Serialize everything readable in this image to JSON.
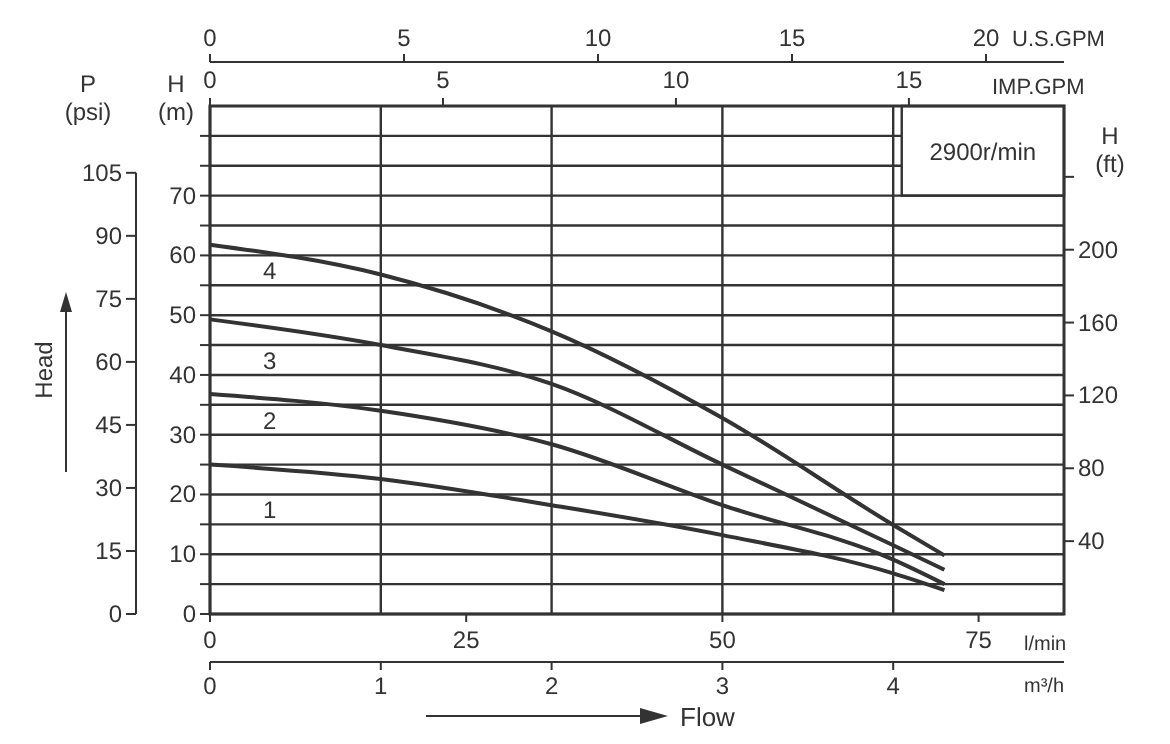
{
  "chart_data": {
    "type": "line",
    "xlabel": "m³/h",
    "ylabel": "H (m)",
    "y2label": "H (ft)",
    "y3label": "P (psi)",
    "x2label": "U.S.GPM",
    "xlim": [
      0,
      5
    ],
    "xticks": [
      0,
      1,
      2,
      3,
      4
    ],
    "x2lim": [
      0,
      22.01
    ],
    "x2ticks": [
      0,
      5,
      10,
      15,
      20
    ],
    "ylim": [
      0,
      85
    ],
    "yticks": [
      0,
      {
        "value": 5,
        "label": null
      },
      10,
      {
        "value": 15,
        "label": null
      },
      20,
      {
        "value": 25,
        "label": null
      },
      30,
      {
        "value": 35,
        "label": null
      },
      40,
      {
        "value": 45,
        "label": null
      },
      50,
      {
        "value": 55,
        "label": null
      },
      60,
      {
        "value": 65,
        "label": null
      },
      70,
      {
        "value": 75,
        "label": null
      },
      {
        "value": 80,
        "label": null
      }
    ],
    "y2lim": [
      0,
      278.9
    ],
    "y2ticks": [
      40,
      80,
      120,
      160,
      200,
      {
        "value": 240,
        "label": null
      }
    ],
    "y3lim": [
      0,
      120.9
    ],
    "y3ticks": [
      0,
      15,
      30,
      45,
      60,
      75,
      90,
      105
    ],
    "grid": true,
    "legend": false,
    "marker": "none",
    "line_style": "solid",
    "annotations": [
      "2900r/min",
      "Head",
      "Flow",
      "l/min",
      "IMP.GPM",
      "0",
      "25",
      "50",
      "75",
      "0",
      "5",
      "10",
      "15"
    ],
    "series": [
      {
        "name": "1",
        "color": "#333333",
        "x": [
          0,
          1,
          2,
          3,
          4,
          4.3
        ],
        "values": [
          25,
          22.6,
          18.2,
          13.2,
          6.8,
          4
        ]
      },
      {
        "name": "2",
        "color": "#333333",
        "x": [
          0,
          1,
          2,
          3,
          4,
          4.3
        ],
        "values": [
          36.8,
          34,
          28.4,
          18.2,
          9.1,
          5
        ]
      },
      {
        "name": "3",
        "color": "#333333",
        "x": [
          0,
          1,
          2,
          3,
          4,
          4.3
        ],
        "values": [
          49.3,
          45,
          38.5,
          25,
          11.5,
          7.4
        ]
      },
      {
        "name": "4",
        "color": "#333333",
        "x": [
          0,
          1,
          2,
          3,
          4,
          4.3
        ],
        "values": [
          61.8,
          56.8,
          47.3,
          32.8,
          14.9,
          9.8
        ]
      }
    ]
  }
}
